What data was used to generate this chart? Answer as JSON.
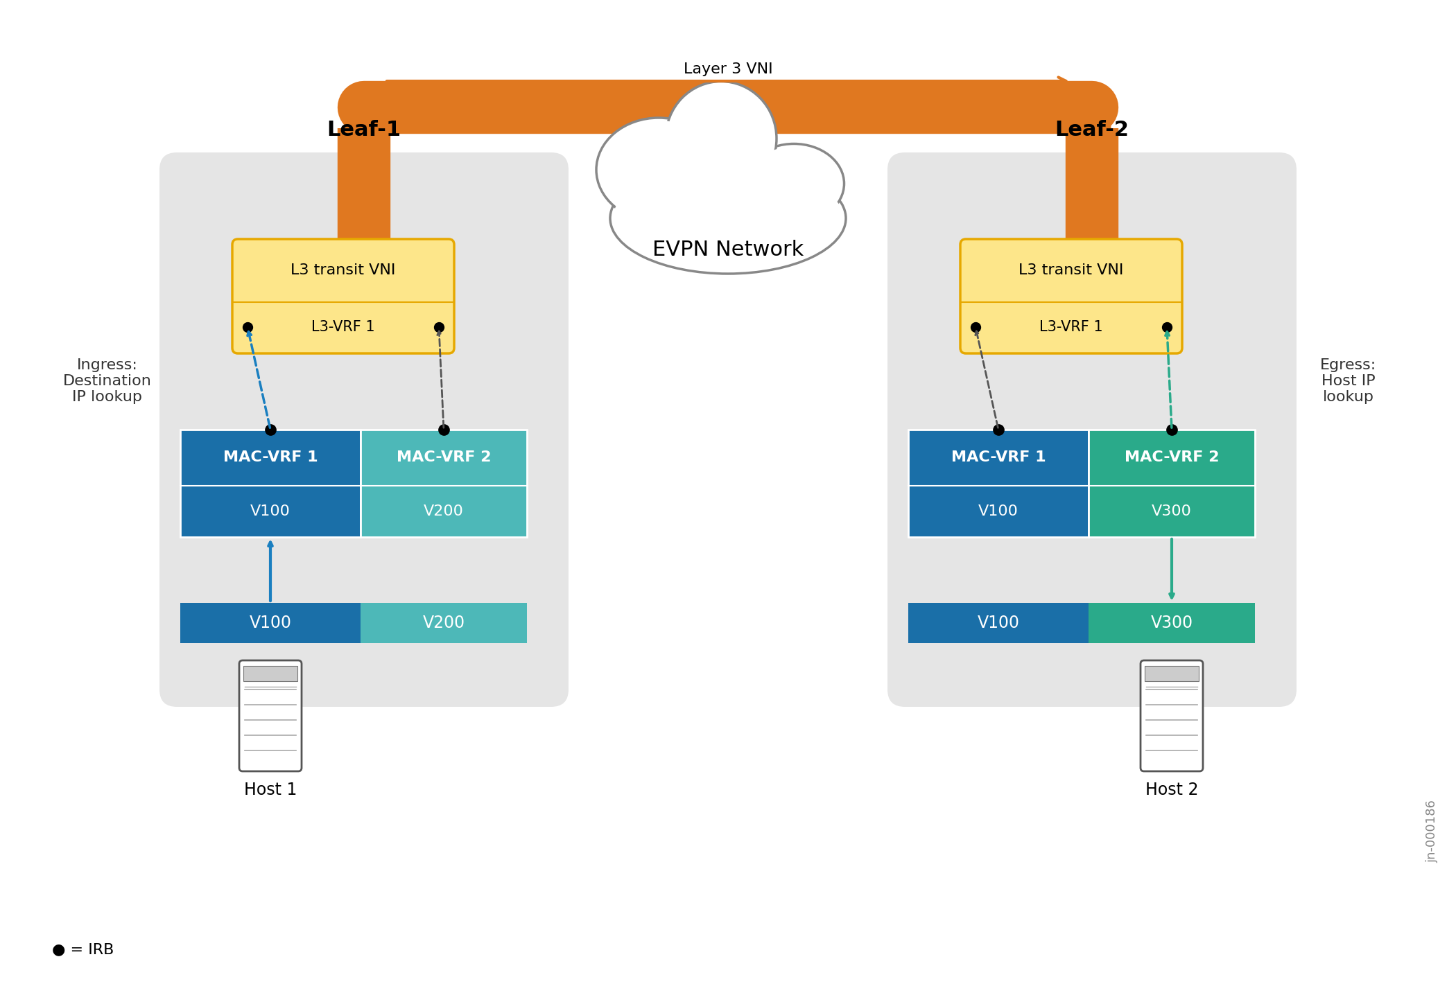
{
  "bg_color": "#ffffff",
  "leaf_bg_color": "#e5e5e5",
  "vni_box_color": "#fde68a",
  "vni_box_border": "#e6a800",
  "vni_box_fill_bottom": "#fde68a",
  "mac_vrf1_color": "#1a6fa8",
  "mac_vrf2_color_l1": "#4db8b8",
  "mac_vrf2_color_l2": "#2aaa8a",
  "v100_color": "#1a6fa8",
  "v200_color": "#4db8b8",
  "v300_color": "#2aaa8a",
  "orange_color": "#e07820",
  "orange_dark": "#c05a00",
  "cloud_border_color": "#888888",
  "arrow_blue_color": "#1a7fc0",
  "arrow_green_color": "#2aaa8a",
  "arrow_dashed_color": "#555555",
  "leaf1_label": "Leaf-1",
  "leaf2_label": "Leaf-2",
  "evpn_label": "EVPN Network",
  "layer3_vni_label": "Layer 3 VNI",
  "l3_transit_vni_label": "L3 transit VNI",
  "l3_vrf_label": "L3-VRF 1",
  "mac_vrf1_label": "MAC-VRF 1",
  "mac_vrf2_label": "MAC-VRF 2",
  "v100_label": "V100",
  "v200_label": "V200",
  "v300_label": "V300",
  "host1_label": "Host 1",
  "host2_label": "Host 2",
  "ingress_label": "Ingress:\nDestination\nIP lookup",
  "egress_label": "Egress:\nHost IP\nlookup",
  "irb_legend": "● = IRB",
  "jn_label": "jn-000186"
}
